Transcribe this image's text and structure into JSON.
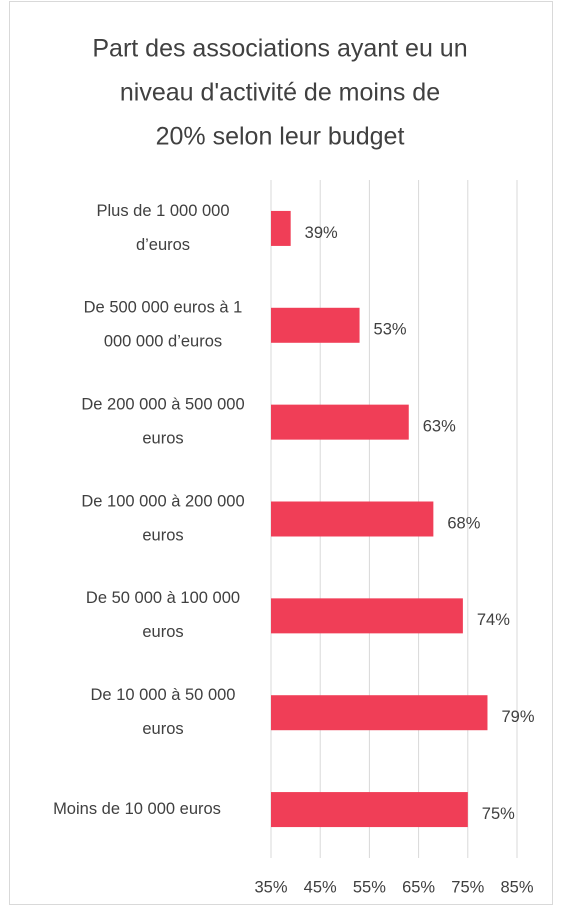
{
  "chart_data": {
    "type": "bar",
    "orientation": "horizontal",
    "title": [
      "Part des associations ayant eu un",
      "niveau d'activité de moins de",
      "20% selon leur budget"
    ],
    "categories": [
      [
        "Plus de 1 000 000",
        "d’euros"
      ],
      [
        "De 500 000 euros à 1",
        "000 000 d’euros"
      ],
      [
        "De 200 000 à 500 000",
        "euros"
      ],
      [
        "De 100 000 à 200 000",
        "euros"
      ],
      [
        "De 50 000 à 100 000",
        "euros"
      ],
      [
        "De 10 000 à 50 000",
        "euros"
      ],
      [
        "Moins de 10 000 euros"
      ]
    ],
    "values": [
      39,
      53,
      63,
      68,
      74,
      79,
      75
    ],
    "value_labels": [
      "39%",
      "53%",
      "63%",
      "68%",
      "74%",
      "79%",
      "75%"
    ],
    "color": "#f03e57",
    "xlim": [
      35,
      85
    ],
    "xticks": [
      {
        "value": 35,
        "label": "35%"
      },
      {
        "value": 45,
        "label": "45%"
      },
      {
        "value": 55,
        "label": "55%"
      },
      {
        "value": 65,
        "label": "65%"
      },
      {
        "value": 75,
        "label": "75%"
      },
      {
        "value": 85,
        "label": "85%"
      }
    ],
    "grid": true
  }
}
